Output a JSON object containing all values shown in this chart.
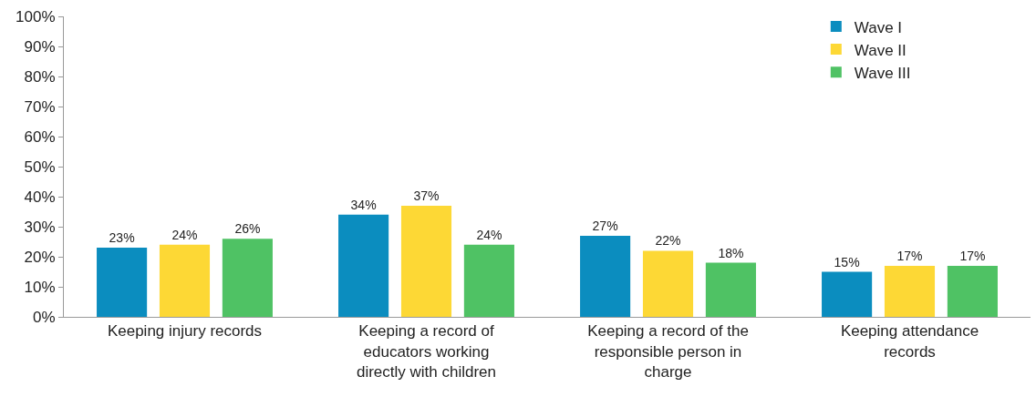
{
  "chart_data": {
    "type": "bar",
    "categories": [
      "Keeping injury records",
      "Keeping a record of educators working directly with children",
      "Keeping a record of the responsible person in charge",
      "Keeping attendance records"
    ],
    "series": [
      {
        "name": "Wave I",
        "color": "#0b8dbf",
        "values": [
          23,
          34,
          27,
          15
        ],
        "value_labels": [
          "23%",
          "34%",
          "27%",
          "15%"
        ]
      },
      {
        "name": "Wave II",
        "color": "#fdd835",
        "values": [
          24,
          37,
          22,
          17
        ],
        "value_labels": [
          "24%",
          "37%",
          "22%",
          "17%"
        ]
      },
      {
        "name": "Wave III",
        "color": "#4fc264",
        "values": [
          26,
          24,
          18,
          17
        ],
        "value_labels": [
          "26%",
          "24%",
          "18%",
          "17%"
        ]
      }
    ],
    "ylim": [
      0,
      100
    ],
    "yticks": [
      {
        "value": 0,
        "label": "0%"
      },
      {
        "value": 10,
        "label": "10%"
      },
      {
        "value": 20,
        "label": "20%"
      },
      {
        "value": 30,
        "label": "30%"
      },
      {
        "value": 40,
        "label": "40%"
      },
      {
        "value": 50,
        "label": "50%"
      },
      {
        "value": 60,
        "label": "60%"
      },
      {
        "value": 70,
        "label": "70%"
      },
      {
        "value": 80,
        "label": "80%"
      },
      {
        "value": 90,
        "label": "90%"
      },
      {
        "value": 100,
        "label": "100%"
      }
    ],
    "grid": false,
    "legend": "top right"
  }
}
